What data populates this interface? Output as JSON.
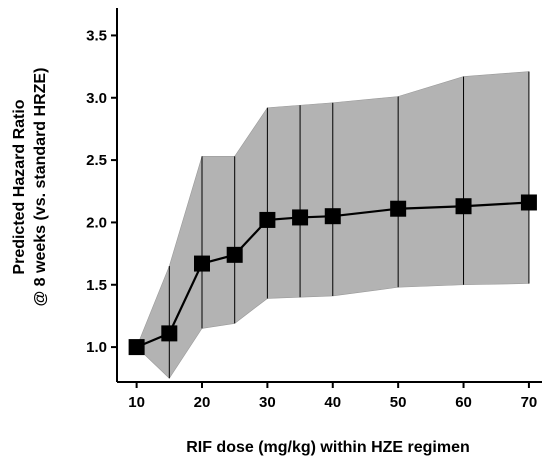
{
  "chart_data": {
    "type": "line",
    "xlabel": "RIF dose (mg/kg) within HZE regimen",
    "ylabel_lines": [
      "Predicted Hazard Ratio",
      "@ 8 weeks (vs. standard HRZE)"
    ],
    "x": [
      10,
      15,
      20,
      25,
      30,
      35,
      40,
      50,
      60,
      70
    ],
    "series": [
      {
        "values": [
          1.0,
          1.11,
          1.67,
          1.74,
          2.02,
          2.04,
          2.05,
          2.11,
          2.13,
          2.16
        ],
        "lower": [
          1.0,
          0.75,
          1.15,
          1.19,
          1.39,
          1.4,
          1.41,
          1.48,
          1.5,
          1.51
        ],
        "upper": [
          1.0,
          1.65,
          2.53,
          2.53,
          2.92,
          2.94,
          2.96,
          3.01,
          3.17,
          3.21
        ]
      }
    ],
    "xticks": [
      "10",
      "20",
      "30",
      "40",
      "50",
      "60",
      "70"
    ],
    "xtick_values": [
      10,
      20,
      30,
      40,
      50,
      60,
      70
    ],
    "yticks": [
      "1.0",
      "1.5",
      "2.0",
      "2.5",
      "3.0",
      "3.5"
    ],
    "ytick_values": [
      1.0,
      1.5,
      2.0,
      2.5,
      3.0,
      3.5
    ],
    "xlim": [
      7,
      72
    ],
    "ylim": [
      0.72,
      3.72
    ],
    "grid": false,
    "colors": {
      "band": "#b3b3b3",
      "line": "#000000",
      "marker": "#000000"
    }
  }
}
